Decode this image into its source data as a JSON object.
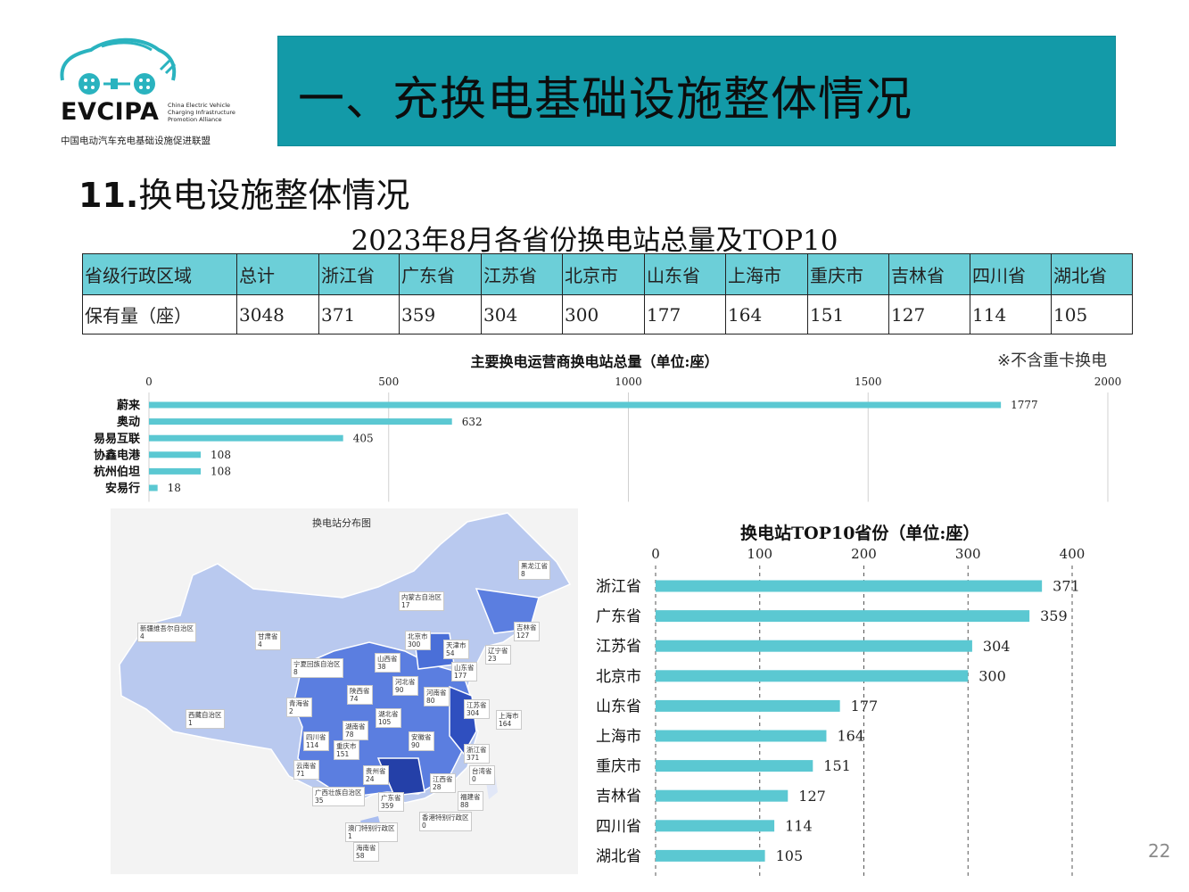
{
  "header": {
    "logo_brand": "EVCIPA",
    "logo_en": [
      "China Electric Vehicle",
      "Charging Infrastructure",
      "Promotion Alliance"
    ],
    "logo_cn": "中国电动汽车充电基础设施促进联盟",
    "banner_title": "一、充换电基础设施整体情况",
    "banner_color": "#139aa8"
  },
  "section": {
    "number": "11.",
    "title": "换电设施整体情况"
  },
  "table": {
    "title": "2023年8月各省份换电站总量及TOP10",
    "header": [
      "省级行政区域",
      "总计",
      "浙江省",
      "广东省",
      "江苏省",
      "北京市",
      "山东省",
      "上海市",
      "重庆市",
      "吉林省",
      "四川省",
      "湖北省"
    ],
    "row": [
      "保有量（座）",
      "3048",
      "371",
      "359",
      "304",
      "300",
      "177",
      "164",
      "151",
      "127",
      "114",
      "105"
    ],
    "header_color": "#6ccfd8"
  },
  "chart_data": [
    {
      "type": "bar",
      "orientation": "horizontal",
      "title": "主要换电运营商换电站总量（单位:座）",
      "categories": [
        "蔚来",
        "奥动",
        "易易互联",
        "协鑫电港",
        "杭州伯坦",
        "安易行"
      ],
      "values": [
        1777,
        632,
        405,
        108,
        108,
        18
      ],
      "xlim": [
        0,
        2000
      ],
      "ticks": [
        0,
        500,
        1000,
        1500,
        2000
      ],
      "grid": true,
      "color": "#5bc8d2"
    },
    {
      "type": "bar",
      "orientation": "horizontal",
      "title": "换电站TOP10省份（单位:座）",
      "categories": [
        "浙江省",
        "广东省",
        "江苏省",
        "北京市",
        "山东省",
        "上海市",
        "重庆市",
        "吉林省",
        "四川省",
        "湖北省"
      ],
      "values": [
        371,
        359,
        304,
        300,
        177,
        164,
        151,
        127,
        114,
        105
      ],
      "xlim": [
        0,
        400
      ],
      "ticks": [
        0,
        100,
        200,
        300,
        400
      ],
      "grid": true,
      "color": "#5bc8d2"
    }
  ],
  "note": "※不含重卡换电",
  "map": {
    "title": "换电站分布图",
    "labels": [
      {
        "name": "黑龙江省",
        "value": "8"
      },
      {
        "name": "内蒙古自治区",
        "value": "17"
      },
      {
        "name": "吉林省",
        "value": "127"
      },
      {
        "name": "新疆维吾尔自治区",
        "value": "4"
      },
      {
        "name": "甘肃省",
        "value": "4"
      },
      {
        "name": "北京市",
        "value": "300"
      },
      {
        "name": "天津市",
        "value": "54"
      },
      {
        "name": "辽宁省",
        "value": "23"
      },
      {
        "name": "宁夏回族自治区",
        "value": "8"
      },
      {
        "name": "山西省",
        "value": "38"
      },
      {
        "name": "山东省",
        "value": "177"
      },
      {
        "name": "河北省",
        "value": "90"
      },
      {
        "name": "陕西省",
        "value": "74"
      },
      {
        "name": "青海省",
        "value": "2"
      },
      {
        "name": "河南省",
        "value": "80"
      },
      {
        "name": "江苏省",
        "value": "304"
      },
      {
        "name": "西藏自治区",
        "value": "1"
      },
      {
        "name": "湖北省",
        "value": "105"
      },
      {
        "name": "上海市",
        "value": "164"
      },
      {
        "name": "湖南省",
        "value": "78"
      },
      {
        "name": "四川省",
        "value": "114"
      },
      {
        "name": "安徽省",
        "value": "90"
      },
      {
        "name": "重庆市",
        "value": "151"
      },
      {
        "name": "浙江省",
        "value": "371"
      },
      {
        "name": "云南省",
        "value": "71"
      },
      {
        "name": "贵州省",
        "value": "24"
      },
      {
        "name": "台湾省",
        "value": "0"
      },
      {
        "name": "江西省",
        "value": "28"
      },
      {
        "name": "广西壮族自治区",
        "value": "35"
      },
      {
        "name": "福建省",
        "value": "88"
      },
      {
        "name": "广东省",
        "value": "359"
      },
      {
        "name": "香港特别行政区",
        "value": "0"
      },
      {
        "name": "澳门特别行政区",
        "value": "1"
      },
      {
        "name": "海南省",
        "value": "58"
      }
    ]
  },
  "page_number": "22"
}
